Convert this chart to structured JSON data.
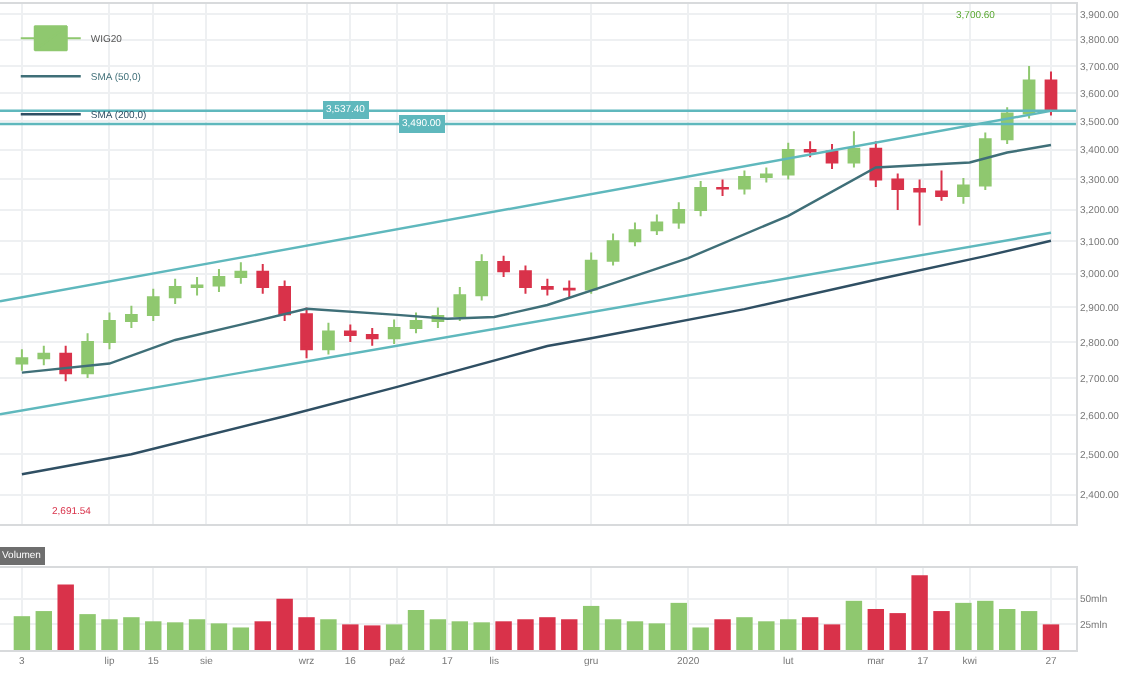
{
  "chart_data": [
    {
      "type": "candlestick",
      "log": true,
      "grid": true,
      "legend": "top left",
      "tick_labels": "y",
      "xlim": [
        "2019-05-27",
        "2020-05-05"
      ],
      "xticks": [
        {
          "value": "2019-06-03",
          "label": null
        },
        {
          "value": "2019-07-01",
          "label": null
        },
        {
          "value": "2019-07-15",
          "label": null
        },
        {
          "value": "2019-08-01",
          "label": null
        },
        {
          "value": "2019-09-02",
          "label": null
        },
        {
          "value": "2019-09-16",
          "label": null
        },
        {
          "value": "2019-10-01",
          "label": null
        },
        {
          "value": "2019-10-17",
          "label": null
        },
        {
          "value": "2019-11-01",
          "label": null
        },
        {
          "value": "2019-12-02",
          "label": null
        },
        {
          "value": "2020-01-02",
          "label": null
        },
        {
          "value": "2020-02-03",
          "label": null
        },
        {
          "value": "2020-03-02",
          "label": null
        },
        {
          "value": "2020-03-17",
          "label": null
        },
        {
          "value": "2020-04-01",
          "label": null
        },
        {
          "value": "2020-04-27",
          "label": null
        }
      ],
      "ylim": [
        2330,
        3940
      ],
      "yticks": [
        {
          "value": 2400,
          "label": "2,400.00"
        },
        {
          "value": 2500,
          "label": "2,500.00"
        },
        {
          "value": 2600,
          "label": "2,600.00"
        },
        {
          "value": 2700,
          "label": "2,700.00"
        },
        {
          "value": 2800,
          "label": "2,800.00"
        },
        {
          "value": 2900,
          "label": "2,900.00"
        },
        {
          "value": 3000,
          "label": "3,000.00"
        },
        {
          "value": 3100,
          "label": "3,100.00"
        },
        {
          "value": 3200,
          "label": "3,200.00"
        },
        {
          "value": 3300,
          "label": "3,300.00"
        },
        {
          "value": 3400,
          "label": "3,400.00"
        },
        {
          "value": 3500,
          "label": "3,500.00"
        },
        {
          "value": 3600,
          "label": "3,600.00"
        },
        {
          "value": 3700,
          "label": "3,700.00"
        },
        {
          "value": 3800,
          "label": "3,800.00"
        },
        {
          "value": 3900,
          "label": "3,900.00"
        }
      ],
      "series": [
        {
          "name": "WIG20",
          "x": [
            "2019-06-03",
            "2019-06-10",
            "2019-06-17",
            "2019-06-24",
            "2019-07-01",
            "2019-07-08",
            "2019-07-15",
            "2019-07-22",
            "2019-07-29",
            "2019-08-05",
            "2019-08-12",
            "2019-08-19",
            "2019-08-26",
            "2019-09-02",
            "2019-09-09",
            "2019-09-16",
            "2019-09-23",
            "2019-09-30",
            "2019-10-07",
            "2019-10-14",
            "2019-10-21",
            "2019-10-28",
            "2019-11-04",
            "2019-11-11",
            "2019-11-18",
            "2019-11-25",
            "2019-12-02",
            "2019-12-09",
            "2019-12-16",
            "2019-12-23",
            "2019-12-30",
            "2020-01-06",
            "2020-01-13",
            "2020-01-20",
            "2020-01-27",
            "2020-02-03",
            "2020-02-10",
            "2020-02-17",
            "2020-02-24",
            "2020-03-02",
            "2020-03-09",
            "2020-03-16",
            "2020-03-23",
            "2020-03-30",
            "2020-04-06",
            "2020-04-13",
            "2020-04-20",
            "2020-04-27"
          ],
          "ohlc": [
            [
              2740,
              2780,
              2720,
              2755
            ],
            [
              2755,
              2790,
              2735,
              2767
            ],
            [
              2767,
              2790,
              2691.54,
              2713
            ],
            [
              2713,
              2825,
              2700,
              2800
            ],
            [
              2800,
              2885,
              2780,
              2860
            ],
            [
              2860,
              2905,
              2840,
              2878
            ],
            [
              2878,
              2955,
              2860,
              2930
            ],
            [
              2930,
              2985,
              2910,
              2960
            ],
            [
              2960,
              2990,
              2935,
              2965
            ],
            [
              2965,
              3015,
              2945,
              2990
            ],
            [
              2990,
              3035,
              2970,
              3006
            ],
            [
              3006,
              3030,
              2940,
              2960
            ],
            [
              2960,
              2980,
              2860,
              2880
            ],
            [
              2880,
              2900,
              2755,
              2780
            ],
            [
              2780,
              2855,
              2765,
              2830
            ],
            [
              2830,
              2850,
              2800,
              2820
            ],
            [
              2820,
              2840,
              2790,
              2811
            ],
            [
              2811,
              2865,
              2795,
              2840
            ],
            [
              2840,
              2885,
              2825,
              2860
            ],
            [
              2860,
              2900,
              2840,
              2875
            ],
            [
              2875,
              2960,
              2860,
              2936
            ],
            [
              2936,
              3060,
              2920,
              3036
            ],
            [
              3036,
              3055,
              2990,
              3008
            ],
            [
              3008,
              3025,
              2940,
              2960
            ],
            [
              2960,
              2985,
              2935,
              2955
            ],
            [
              2955,
              2980,
              2930,
              2953
            ],
            [
              2953,
              3065,
              2940,
              3040
            ],
            [
              3040,
              3125,
              3025,
              3100
            ],
            [
              3100,
              3160,
              3085,
              3135
            ],
            [
              3135,
              3185,
              3120,
              3160
            ],
            [
              3160,
              3225,
              3140,
              3200
            ],
            [
              3200,
              3295,
              3180,
              3272
            ],
            [
              3272,
              3300,
              3245,
              3270
            ],
            [
              3270,
              3330,
              3250,
              3308
            ],
            [
              3308,
              3340,
              3290,
              3317
            ],
            [
              3317,
              3425,
              3300,
              3400
            ],
            [
              3400,
              3430,
              3375,
              3395
            ],
            [
              3395,
              3420,
              3335,
              3357
            ],
            [
              3357,
              3465,
              3340,
              3404
            ],
            [
              3404,
              3430,
              3275,
              3300
            ],
            [
              3300,
              3320,
              3200,
              3268
            ],
            [
              3268,
              3300,
              3150,
              3260
            ],
            [
              3260,
              3330,
              3230,
              3245
            ],
            [
              3245,
              3305,
              3220,
              3280
            ],
            [
              3280,
              3460,
              3265,
              3437
            ],
            [
              3437,
              3550,
              3420,
              3527
            ],
            [
              3527,
              3700.6,
              3510,
              3647
            ],
            [
              3647,
              3680,
              3520,
              3537.4
            ]
          ],
          "colors": [
            "#8fc86f",
            "#8fc86f",
            "#d9324a",
            "#8fc86f",
            "#8fc86f",
            "#8fc86f",
            "#8fc86f",
            "#8fc86f",
            "#8fc86f",
            "#8fc86f",
            "#8fc86f",
            "#d9324a",
            "#d9324a",
            "#d9324a",
            "#8fc86f",
            "#d9324a",
            "#d9324a",
            "#8fc86f",
            "#8fc86f",
            "#8fc86f",
            "#8fc86f",
            "#8fc86f",
            "#d9324a",
            "#d9324a",
            "#d9324a",
            "#d9324a",
            "#8fc86f",
            "#8fc86f",
            "#8fc86f",
            "#8fc86f",
            "#8fc86f",
            "#8fc86f",
            "#d9324a",
            "#8fc86f",
            "#8fc86f",
            "#8fc86f",
            "#d9324a",
            "#d9324a",
            "#8fc86f",
            "#d9324a",
            "#d9324a",
            "#d9324a",
            "#d9324a",
            "#8fc86f",
            "#8fc86f",
            "#8fc86f",
            "#8fc86f",
            "#d9324a"
          ]
        },
        {
          "name": "SMA (50,0)",
          "type": "line",
          "color": "#3f6f78",
          "x": [
            "2019-06-03",
            "2019-07-01",
            "2019-07-22",
            "2019-08-12",
            "2019-09-02",
            "2019-10-01",
            "2019-10-17",
            "2019-11-01",
            "2019-11-18",
            "2019-12-09",
            "2020-01-02",
            "2020-02-03",
            "2020-03-02",
            "2020-04-01",
            "2020-04-13",
            "2020-04-27"
          ],
          "values": [
            2715,
            2740,
            2806,
            2850,
            2896,
            2878,
            2867,
            2872,
            2907,
            2971,
            3048,
            3181,
            3340,
            3357,
            3391,
            3417
          ]
        },
        {
          "name": "SMA (200,0)",
          "type": "line",
          "color": "#2f4f63",
          "x": [
            "2019-06-03",
            "2019-07-08",
            "2019-08-26",
            "2019-10-01",
            "2019-11-18",
            "2019-12-02",
            "2020-01-20",
            "2020-03-02",
            "2020-04-06",
            "2020-04-27"
          ],
          "values": [
            2450,
            2500,
            2598,
            2676,
            2789,
            2811,
            2895,
            2982,
            3054,
            3102
          ]
        },
        {
          "type": "line",
          "color": "#5fb8bd",
          "x": [
            "2019-05-27",
            "2020-04-27"
          ],
          "values": [
            2918,
            3537
          ]
        },
        {
          "type": "line",
          "color": "#5fb8bd",
          "x": [
            "2019-05-27",
            "2020-04-27"
          ],
          "values": [
            2603,
            3127
          ]
        }
      ],
      "ref_lines": [
        {
          "axis": "y",
          "value": 3537.4,
          "label": "3,537.40",
          "color": "#5fb8bd"
        },
        {
          "axis": "y",
          "value": 3490,
          "label": "3,490.00",
          "color": "#5fb8bd"
        }
      ],
      "annotations": [
        "3,700.60",
        "2,691.54"
      ]
    },
    {
      "type": "bar",
      "grid": true,
      "xlim": [
        "2019-05-27",
        "2020-05-05"
      ],
      "xticks": [
        {
          "value": "2019-06-03",
          "label": "3"
        },
        {
          "value": "2019-07-01",
          "label": "lip"
        },
        {
          "value": "2019-07-15",
          "label": "15"
        },
        {
          "value": "2019-08-01",
          "label": "sie"
        },
        {
          "value": "2019-09-02",
          "label": "wrz"
        },
        {
          "value": "2019-09-16",
          "label": "16"
        },
        {
          "value": "2019-10-01",
          "label": "paź"
        },
        {
          "value": "2019-10-17",
          "label": "17"
        },
        {
          "value": "2019-11-01",
          "label": "lis"
        },
        {
          "value": "2019-12-02",
          "label": "gru"
        },
        {
          "value": "2020-01-02",
          "label": "2020"
        },
        {
          "value": "2020-02-03",
          "label": "lut"
        },
        {
          "value": "2020-03-02",
          "label": "mar"
        },
        {
          "value": "2020-03-17",
          "label": "17"
        },
        {
          "value": "2020-04-01",
          "label": "kwi"
        },
        {
          "value": "2020-04-27",
          "label": "27"
        }
      ],
      "ylim": [
        0,
        80
      ],
      "yticks": [
        {
          "value": 25,
          "label": "25mln"
        },
        {
          "value": 50,
          "label": "50mln"
        }
      ],
      "x": [
        "2019-06-03",
        "2019-06-10",
        "2019-06-17",
        "2019-06-24",
        "2019-07-01",
        "2019-07-08",
        "2019-07-15",
        "2019-07-22",
        "2019-07-29",
        "2019-08-05",
        "2019-08-12",
        "2019-08-19",
        "2019-08-26",
        "2019-09-02",
        "2019-09-09",
        "2019-09-16",
        "2019-09-23",
        "2019-09-30",
        "2019-10-07",
        "2019-10-14",
        "2019-10-21",
        "2019-10-28",
        "2019-11-04",
        "2019-11-11",
        "2019-11-18",
        "2019-11-25",
        "2019-12-02",
        "2019-12-09",
        "2019-12-16",
        "2019-12-23",
        "2019-12-30",
        "2020-01-06",
        "2020-01-13",
        "2020-01-20",
        "2020-01-27",
        "2020-02-03",
        "2020-02-10",
        "2020-02-17",
        "2020-02-24",
        "2020-03-02",
        "2020-03-09",
        "2020-03-16",
        "2020-03-23",
        "2020-03-30",
        "2020-04-06",
        "2020-04-13",
        "2020-04-20",
        "2020-04-27"
      ],
      "series": [
        {
          "name": "Volumen",
          "values": [
            33,
            38,
            64,
            35,
            30,
            32,
            28,
            27,
            30,
            26,
            22,
            28,
            50,
            32,
            30,
            25,
            24,
            25,
            39,
            30,
            28,
            27,
            28,
            30,
            32,
            30,
            43,
            30,
            28,
            26,
            46,
            22,
            30,
            32,
            28,
            30,
            32,
            25,
            48,
            40,
            36,
            73,
            38,
            46,
            48,
            40,
            38,
            25
          ],
          "colors": [
            "#8fc86f",
            "#8fc86f",
            "#d9324a",
            "#8fc86f",
            "#8fc86f",
            "#8fc86f",
            "#8fc86f",
            "#8fc86f",
            "#8fc86f",
            "#8fc86f",
            "#8fc86f",
            "#d9324a",
            "#d9324a",
            "#d9324a",
            "#8fc86f",
            "#d9324a",
            "#d9324a",
            "#8fc86f",
            "#8fc86f",
            "#8fc86f",
            "#8fc86f",
            "#8fc86f",
            "#d9324a",
            "#d9324a",
            "#d9324a",
            "#d9324a",
            "#8fc86f",
            "#8fc86f",
            "#8fc86f",
            "#8fc86f",
            "#8fc86f",
            "#8fc86f",
            "#d9324a",
            "#8fc86f",
            "#8fc86f",
            "#8fc86f",
            "#d9324a",
            "#d9324a",
            "#8fc86f",
            "#d9324a",
            "#d9324a",
            "#d9324a",
            "#d9324a",
            "#8fc86f",
            "#8fc86f",
            "#8fc86f",
            "#8fc86f",
            "#d9324a"
          ]
        }
      ]
    }
  ]
}
